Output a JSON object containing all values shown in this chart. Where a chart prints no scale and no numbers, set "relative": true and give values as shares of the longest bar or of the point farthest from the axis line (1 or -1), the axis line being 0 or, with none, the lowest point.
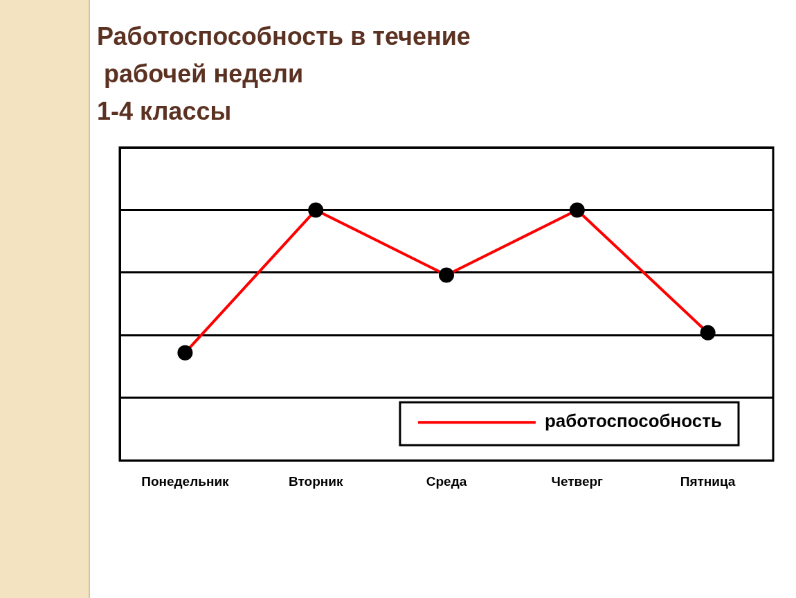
{
  "chart_data": {
    "type": "line",
    "title": "Работоспособность в течение\n рабочей недели\n1-4 классы",
    "categories": [
      "Понедельник",
      "Вторник",
      "Среда",
      "Четверг",
      "Пятница"
    ],
    "series": [
      {
        "name": "работоспособность",
        "color": "#ff0000",
        "values": [
          0.43,
          1,
          0.74,
          1,
          0.51
        ]
      }
    ],
    "relative": true,
    "grid": "y",
    "legend": "bottom right",
    "marker": "circle",
    "line_style": "solid"
  }
}
